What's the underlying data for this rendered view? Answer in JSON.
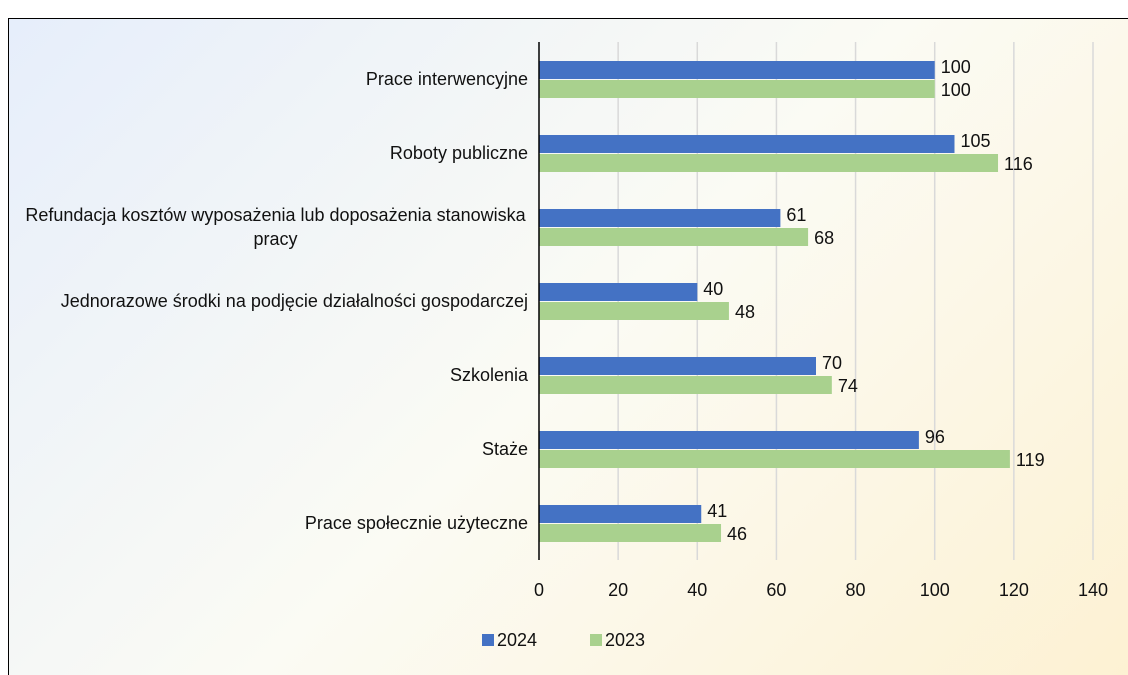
{
  "chart_data": {
    "type": "hbar",
    "categories": [
      "Prace interwencyjne",
      "Roboty publiczne",
      "Refundacja kosztów wyposażenia lub doposażenia stanowiska pracy",
      "Jednorazowe środki na podjęcie działalności gospodarczej",
      "Szkolenia",
      "Staże",
      "Prace społecznie użyteczne"
    ],
    "series": [
      {
        "name": "2024",
        "color": "#4472c4",
        "values": [
          100,
          105,
          61,
          40,
          70,
          96,
          41
        ]
      },
      {
        "name": "2023",
        "color": "#a9d18e",
        "values": [
          100,
          116,
          68,
          48,
          74,
          119,
          46
        ]
      }
    ],
    "xlim": [
      0,
      140
    ],
    "xticks": [
      0,
      20,
      40,
      60,
      80,
      100,
      120,
      140
    ],
    "grid": true,
    "legend": "bottom"
  }
}
